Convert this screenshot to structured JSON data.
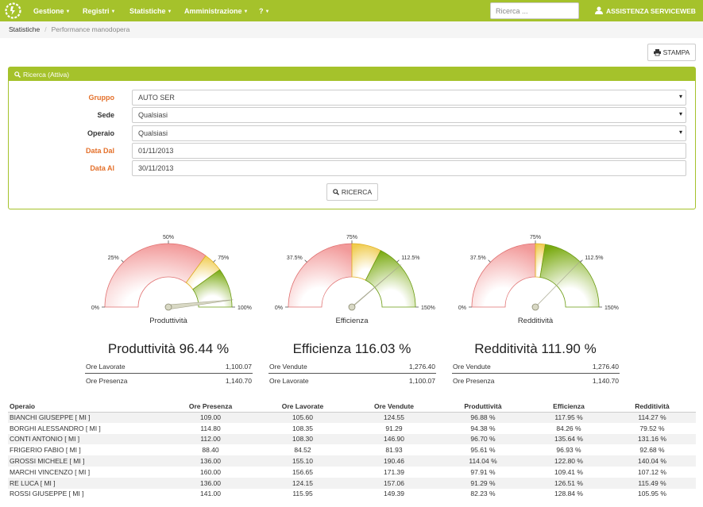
{
  "nav": {
    "items": [
      "Gestione",
      "Registri",
      "Statistiche",
      "Amministrazione",
      "?"
    ],
    "search_placeholder": "Ricerca ...",
    "user": "ASSISTENZA SERVICEWEB",
    "accent_color": "#a5c22b"
  },
  "breadcrumb": {
    "section": "Statistiche",
    "page": "Performance manodopera"
  },
  "print_label": "STAMPA",
  "search": {
    "heading": "Ricerca (Attiva)",
    "button_label": "RICERCA",
    "fields": [
      {
        "label": "Gruppo",
        "value": "AUTO SER",
        "type": "select"
      },
      {
        "label": "Sede",
        "value": "Qualsiasi",
        "type": "select"
      },
      {
        "label": "Operaio",
        "value": "Qualsiasi",
        "type": "select"
      },
      {
        "label": "Data Dal",
        "value": "01/11/2013",
        "type": "date"
      },
      {
        "label": "Data Al",
        "value": "30/11/2013",
        "type": "date"
      }
    ]
  },
  "gauges": [
    {
      "title": "Produttività",
      "min": 0,
      "max": 100,
      "value": 96.44,
      "ticks": [
        {
          "label": "0%",
          "value": 0
        },
        {
          "label": "25%",
          "value": 25
        },
        {
          "label": "50%",
          "value": 50
        },
        {
          "label": "75%",
          "value": 75
        },
        {
          "label": "100%",
          "value": 100
        }
      ],
      "bands": [
        {
          "from": 0,
          "to": 70,
          "color": "red"
        },
        {
          "from": 70,
          "to": 80,
          "color": "yellow"
        },
        {
          "from": 80,
          "to": 100,
          "color": "green"
        }
      ]
    },
    {
      "title": "Efficienza",
      "min": 0,
      "max": 150,
      "value": 116.03,
      "ticks": [
        {
          "label": "0%",
          "value": 0
        },
        {
          "label": "37.5%",
          "value": 37.5
        },
        {
          "label": "75%",
          "value": 75
        },
        {
          "label": "112.5%",
          "value": 112.5
        },
        {
          "label": "150%",
          "value": 150
        }
      ],
      "bands": [
        {
          "from": 0,
          "to": 75,
          "color": "red"
        },
        {
          "from": 75,
          "to": 97.5,
          "color": "yellow"
        },
        {
          "from": 97.5,
          "to": 150,
          "color": "green"
        }
      ]
    },
    {
      "title": "Redditività",
      "min": 0,
      "max": 150,
      "value": 111.9,
      "ticks": [
        {
          "label": "0%",
          "value": 0
        },
        {
          "label": "37.5%",
          "value": 37.5
        },
        {
          "label": "75%",
          "value": 75
        },
        {
          "label": "112.5%",
          "value": 112.5
        },
        {
          "label": "150%",
          "value": 150
        }
      ],
      "bands": [
        {
          "from": 0,
          "to": 75,
          "color": "red"
        },
        {
          "from": 75,
          "to": 82.5,
          "color": "yellow"
        },
        {
          "from": 82.5,
          "to": 150,
          "color": "green"
        }
      ]
    }
  ],
  "summaries": [
    {
      "headline": "Produttività 96.44 %",
      "rows": [
        {
          "label": "Ore Lavorate",
          "value": "1,100.07"
        },
        {
          "label": "Ore Presenza",
          "value": "1,140.70"
        }
      ]
    },
    {
      "headline": "Efficienza 116.03 %",
      "rows": [
        {
          "label": "Ore Vendute",
          "value": "1,276.40"
        },
        {
          "label": "Ore Lavorate",
          "value": "1,100.07"
        }
      ]
    },
    {
      "headline": "Redditività 111.90 %",
      "rows": [
        {
          "label": "Ore Vendute",
          "value": "1,276.40"
        },
        {
          "label": "Ore Presenza",
          "value": "1,140.70"
        }
      ]
    }
  ],
  "table": {
    "columns": [
      "Operaio",
      "Ore Presenza",
      "Ore Lavorate",
      "Ore Vendute",
      "Produttività",
      "Efficienza",
      "Redditività"
    ],
    "rows": [
      [
        "BIANCHI GIUSEPPE [ MI ]",
        "109.00",
        "105.60",
        "124.55",
        "96.88 %",
        "117.95 %",
        "114.27 %"
      ],
      [
        "BORGHI ALESSANDRO [ MI ]",
        "114.80",
        "108.35",
        "91.29",
        "94.38 %",
        "84.26 %",
        "79.52 %"
      ],
      [
        "CONTI ANTONIO [ MI ]",
        "112.00",
        "108.30",
        "146.90",
        "96.70 %",
        "135.64 %",
        "131.16 %"
      ],
      [
        "FRIGERIO FABIO [ MI ]",
        "88.40",
        "84.52",
        "81.93",
        "95.61 %",
        "96.93 %",
        "92.68 %"
      ],
      [
        "GROSSI MICHELE [ MI ]",
        "136.00",
        "155.10",
        "190.46",
        "114.04 %",
        "122.80 %",
        "140.04 %"
      ],
      [
        "MARCHI VINCENZO [ MI ]",
        "160.00",
        "156.65",
        "171.39",
        "97.91 %",
        "109.41 %",
        "107.12 %"
      ],
      [
        "RE LUCA [ MI ]",
        "136.00",
        "124.15",
        "157.06",
        "91.29 %",
        "126.51 %",
        "115.49 %"
      ],
      [
        "ROSSI GIUSEPPE [ MI ]",
        "141.00",
        "115.95",
        "149.39",
        "82.23 %",
        "128.84 %",
        "105.95 %"
      ]
    ]
  }
}
